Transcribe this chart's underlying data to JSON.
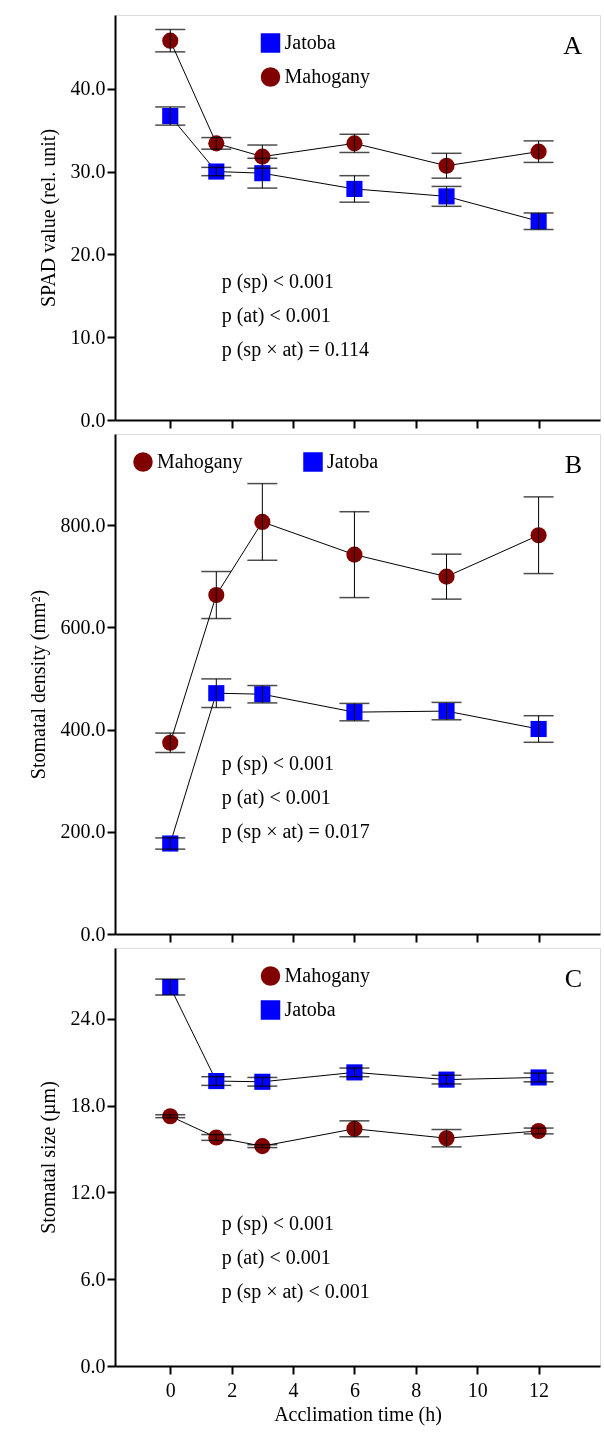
{
  "chart_data": [
    {
      "type": "line",
      "ylabel": "SPAD  value (rel. unit)",
      "xlim": [
        -1.8,
        14
      ],
      "xticks": [
        0,
        2,
        4,
        6,
        8,
        10,
        12
      ],
      "ylim": [
        0,
        48.9
      ],
      "yticks": [
        {
          "value": 0,
          "label": "0.0"
        },
        {
          "value": 10,
          "label": "10.0"
        },
        {
          "value": 20,
          "label": "20.0"
        },
        {
          "value": 30,
          "label": "30.0"
        },
        {
          "value": 40,
          "label": "40.0"
        }
      ],
      "tick_labels": "y",
      "legend": "top",
      "grid": false,
      "line_style": "solid",
      "annotations": [
        "A",
        "p  (sp) < 0.001",
        "p  (at)  < 0.001",
        "p  (sp × at) = 0.114"
      ],
      "series": [
        {
          "name": "Jatoba",
          "color": "#0000ff",
          "marker": "square",
          "x": [
            0,
            1.5,
            3,
            6,
            9,
            12
          ],
          "values": [
            36.7,
            30.0,
            29.8,
            27.9,
            27.0,
            24.0
          ],
          "errors": [
            1.1,
            0.5,
            1.8,
            1.6,
            1.2,
            1.0
          ]
        },
        {
          "name": "Mahogany",
          "color": "#800000",
          "marker": "circle",
          "x": [
            0,
            1.5,
            3,
            6,
            9,
            12
          ],
          "values": [
            45.8,
            33.4,
            31.8,
            33.4,
            30.7,
            32.4
          ],
          "errors": [
            1.35,
            0.7,
            1.4,
            1.1,
            1.5,
            1.3
          ]
        }
      ]
    },
    {
      "type": "line",
      "ylabel": "Stomatal density (mm²)",
      "xlim": [
        -1.8,
        14
      ],
      "xticks": [
        0,
        2,
        4,
        6,
        8,
        10,
        12
      ],
      "ylim": [
        0,
        978
      ],
      "yticks": [
        {
          "value": 0,
          "label": "0.0"
        },
        {
          "value": 200,
          "label": "200.0"
        },
        {
          "value": 400,
          "label": "400.0"
        },
        {
          "value": 600,
          "label": "600.0"
        },
        {
          "value": 800,
          "label": "800.0"
        }
      ],
      "tick_labels": "y",
      "legend": "top left",
      "grid": false,
      "line_style": "solid",
      "annotations": [
        "B",
        "p  (sp) < 0.001",
        "p  (at) < 0.001",
        "p  (sp × at) = 0.017"
      ],
      "series": [
        {
          "name": "Mahogany",
          "color": "#800000",
          "marker": "circle",
          "x": [
            0,
            1.5,
            3,
            6,
            9,
            12
          ],
          "values": [
            374,
            663,
            806,
            742,
            699,
            780
          ],
          "errors": [
            19,
            46,
            75,
            84,
            44,
            75
          ]
        },
        {
          "name": "Jatoba",
          "color": "#0000ff",
          "marker": "square",
          "x": [
            0,
            1.5,
            3,
            6,
            9,
            12
          ],
          "values": [
            177,
            471,
            469,
            434,
            436,
            401
          ],
          "errors": [
            11,
            28,
            17,
            17,
            17,
            26
          ]
        }
      ]
    },
    {
      "type": "line",
      "xlabel": "Acclimation time (h)",
      "ylabel": "Stomatal size  (µm)",
      "xlim": [
        -1.8,
        14
      ],
      "xticks": [
        0,
        2,
        4,
        6,
        8,
        10,
        12
      ],
      "ylim": [
        0,
        28.9
      ],
      "yticks": [
        {
          "value": 0,
          "label": "0.0"
        },
        {
          "value": 6,
          "label": "6.0"
        },
        {
          "value": 12,
          "label": "12.0"
        },
        {
          "value": 18,
          "label": "18.0"
        },
        {
          "value": 24,
          "label": "24.0"
        }
      ],
      "legend": "top",
      "grid": false,
      "line_style": "solid",
      "annotations": [
        "C",
        "p  (sp) < 0.001",
        "p  (at) < 0.001",
        "p  (sp × at) < 0.001"
      ],
      "series": [
        {
          "name": "Mahogany",
          "color": "#800000",
          "marker": "circle",
          "x": [
            0,
            1.5,
            3,
            6,
            9,
            12
          ],
          "values": [
            17.27,
            15.8,
            15.2,
            16.4,
            15.75,
            16.25
          ],
          "errors": [
            0.1,
            0.2,
            0.1,
            0.55,
            0.6,
            0.2
          ]
        },
        {
          "name": "Jatoba",
          "color": "#0000ff",
          "marker": "square",
          "x": [
            0,
            1.5,
            3,
            6,
            9,
            12
          ],
          "values": [
            26.2,
            19.7,
            19.65,
            20.3,
            19.8,
            19.95
          ],
          "errors": [
            0.55,
            0.3,
            0.3,
            0.3,
            0.3,
            0.3
          ]
        }
      ]
    }
  ]
}
